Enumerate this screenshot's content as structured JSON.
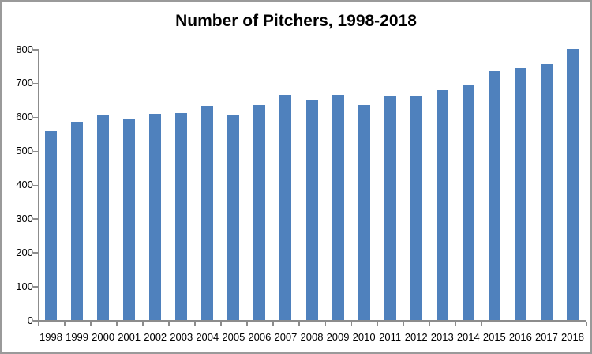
{
  "chart_data": {
    "type": "bar",
    "title": "Number of Pitchers, 1998-2018",
    "categories": [
      "1998",
      "1999",
      "2000",
      "2001",
      "2002",
      "2003",
      "2004",
      "2005",
      "2006",
      "2007",
      "2008",
      "2009",
      "2010",
      "2011",
      "2012",
      "2013",
      "2014",
      "2015",
      "2016",
      "2017",
      "2018"
    ],
    "values": [
      557,
      585,
      606,
      592,
      608,
      612,
      633,
      606,
      635,
      665,
      651,
      665,
      635,
      662,
      662,
      678,
      692,
      735,
      743,
      756,
      800
    ],
    "xlabel": "",
    "ylabel": "",
    "ylim": [
      0,
      800
    ],
    "yticks": [
      0,
      100,
      200,
      300,
      400,
      500,
      600,
      700,
      800
    ],
    "grid": false,
    "legend": "none",
    "bar_color": "#4f81bd",
    "axis_color": "#8c8c8c",
    "text_color": "#000000",
    "background_color": "#ffffff",
    "border_color": "#9a9a9a"
  }
}
